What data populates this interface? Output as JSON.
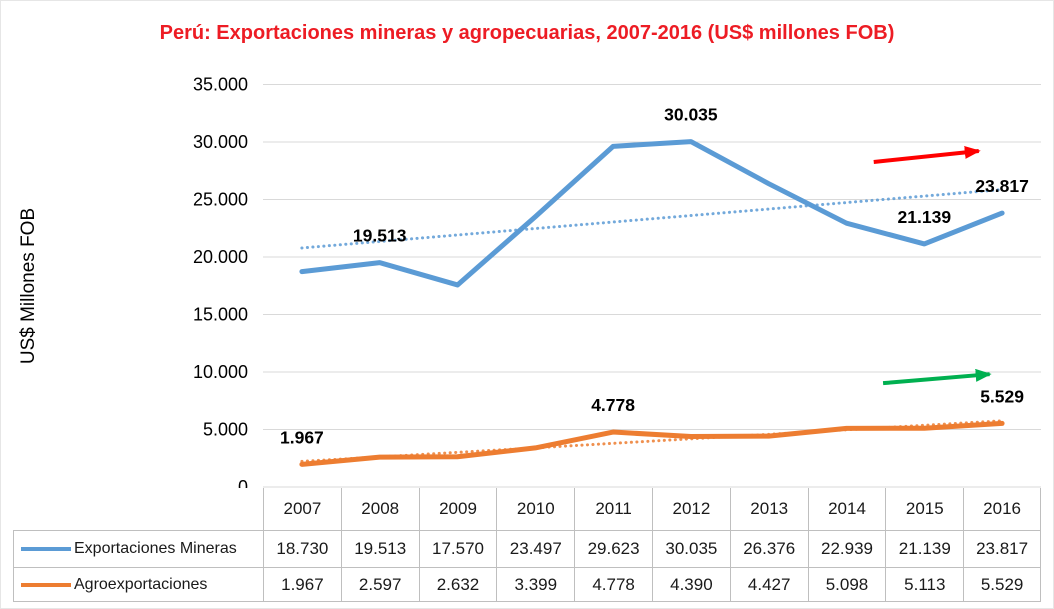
{
  "chart_data": {
    "type": "line",
    "title": "Perú: Exportaciones mineras y agropecuarias, 2007-2016 (US$ millones FOB)",
    "title_color": "#ED1C24",
    "ylabel": "US$ Millones FOB",
    "ylim": [
      0,
      35000
    ],
    "grid": true,
    "legend_position": "bottom-table",
    "yticks": [
      {
        "value": 35000,
        "label": "35.000"
      },
      {
        "value": 30000,
        "label": "30.000"
      },
      {
        "value": 25000,
        "label": "25.000"
      },
      {
        "value": 20000,
        "label": "20.000"
      },
      {
        "value": 15000,
        "label": "15.000"
      },
      {
        "value": 10000,
        "label": "10.000"
      },
      {
        "value": 5000,
        "label": "5.000"
      },
      {
        "value": 0,
        "label": "0"
      }
    ],
    "categories": [
      "2007",
      "2008",
      "2009",
      "2010",
      "2011",
      "2012",
      "2013",
      "2014",
      "2015",
      "2016"
    ],
    "series": [
      {
        "name": "Exportaciones Mineras",
        "color": "#5B9BD5",
        "values": [
          18730,
          19513,
          17570,
          23497,
          29623,
          30035,
          26376,
          22939,
          21139,
          23817
        ],
        "trendline": true,
        "point_labels": [
          {
            "index": 1,
            "text": "19.513"
          },
          {
            "index": 5,
            "text": "30.035"
          },
          {
            "index": 8,
            "text": "21.139"
          },
          {
            "index": 9,
            "text": "23.817"
          }
        ]
      },
      {
        "name": "Agroexportaciones",
        "color": "#ED7D31",
        "values": [
          1967,
          2597,
          2632,
          3399,
          4778,
          4390,
          4427,
          5098,
          5113,
          5529
        ],
        "trendline": true,
        "point_labels": [
          {
            "index": 0,
            "text": "1.967"
          },
          {
            "index": 4,
            "text": "4.778"
          },
          {
            "index": 9,
            "text": "5.529"
          }
        ]
      }
    ],
    "annotations": [
      {
        "name": "mining-trend-arrow",
        "color": "#FF0000",
        "from": {
          "index": 7.35,
          "value": 28260
        },
        "to": {
          "index": 8.7,
          "value": 29220
        }
      },
      {
        "name": "agro-trend-arrow",
        "color": "#00B050",
        "from": {
          "index": 7.47,
          "value": 9030
        },
        "to": {
          "index": 8.84,
          "value": 9810
        }
      }
    ]
  },
  "table": {
    "years": [
      "2007",
      "2008",
      "2009",
      "2010",
      "2011",
      "2012",
      "2013",
      "2014",
      "2015",
      "2016"
    ],
    "rows": [
      {
        "legend": "Exportaciones Mineras",
        "color": "#5B9BD5",
        "values": [
          "18.730",
          "19.513",
          "17.570",
          "23.497",
          "29.623",
          "30.035",
          "26.376",
          "22.939",
          "21.139",
          "23.817"
        ]
      },
      {
        "legend": "Agroexportaciones",
        "color": "#ED7D31",
        "values": [
          "1.967",
          "2.597",
          "2.632",
          "3.399",
          "4.778",
          "4.390",
          "4.427",
          "5.098",
          "5.113",
          "5.529"
        ]
      }
    ]
  },
  "colors": {
    "grid": "#D9D9D9",
    "table_border": "#BFBFBF",
    "text": "#000000"
  }
}
